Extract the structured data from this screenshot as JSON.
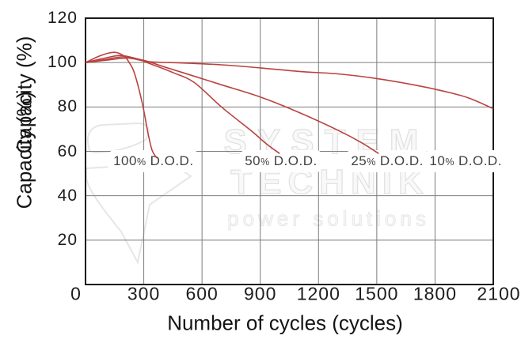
{
  "chart_data": {
    "type": "line",
    "title": "",
    "xlabel": "Number of cycles (cycles)",
    "ylabel": "Capacity (%)",
    "ylabel_note": "axis title appears twice, overlapping (rendering artifact in source)",
    "xlim": [
      0,
      2100
    ],
    "ylim": [
      0,
      120
    ],
    "x_ticks": [
      "0",
      "300",
      "600",
      "900",
      "1200",
      "1500",
      "1800",
      "2100"
    ],
    "y_ticks": [
      "20",
      "40",
      "60",
      "80",
      "100",
      "120"
    ],
    "grid": "on",
    "legend_position": "none",
    "line_color": "#b9423f",
    "series": [
      {
        "name": "100% D.O.D.",
        "points": [
          [
            0,
            100
          ],
          [
            60,
            102.5
          ],
          [
            120,
            104.3
          ],
          [
            160,
            104.5
          ],
          [
            200,
            102.8
          ],
          [
            225,
            100
          ],
          [
            253,
            95
          ],
          [
            294,
            81
          ],
          [
            322,
            68
          ],
          [
            343,
            60.5
          ],
          [
            367,
            57
          ]
        ]
      },
      {
        "name": "50% D.O.D.",
        "points": [
          [
            0,
            100
          ],
          [
            100,
            102
          ],
          [
            180,
            103.2
          ],
          [
            260,
            101.8
          ],
          [
            326,
            99.7
          ],
          [
            450,
            95.5
          ],
          [
            560,
            91
          ],
          [
            700,
            80
          ],
          [
            850,
            69.5
          ],
          [
            930,
            63.5
          ],
          [
            1000,
            59
          ]
        ]
      },
      {
        "name": "25% D.O.D.",
        "points": [
          [
            0,
            100
          ],
          [
            110,
            101.5
          ],
          [
            200,
            102.6
          ],
          [
            300,
            101
          ],
          [
            400,
            98.2
          ],
          [
            500,
            95.5
          ],
          [
            700,
            90
          ],
          [
            900,
            84.5
          ],
          [
            1100,
            77.5
          ],
          [
            1300,
            69.5
          ],
          [
            1420,
            64
          ],
          [
            1510,
            59
          ]
        ]
      },
      {
        "name": "10% D.O.D.",
        "points": [
          [
            0,
            100
          ],
          [
            120,
            101.2
          ],
          [
            220,
            102
          ],
          [
            326,
            100.4
          ],
          [
            500,
            99.8
          ],
          [
            700,
            99
          ],
          [
            900,
            97.6
          ],
          [
            1100,
            96
          ],
          [
            1300,
            94.9
          ],
          [
            1500,
            92.8
          ],
          [
            1700,
            89.8
          ],
          [
            1850,
            87
          ],
          [
            1975,
            84
          ],
          [
            2100,
            79.2
          ]
        ]
      }
    ],
    "annotations": [
      {
        "num": "100",
        "pct": "%",
        "suffix": "D.O.D.",
        "x": 350,
        "y": 55.5
      },
      {
        "num": "50",
        "pct": "%",
        "suffix": "D.O.D.",
        "x": 1007,
        "y": 55.5
      },
      {
        "num": "25",
        "pct": "%",
        "suffix": "D.O.D.",
        "x": 1554,
        "y": 55.5
      },
      {
        "num": "10",
        "pct": "%",
        "suffix": "D.O.D.",
        "x": 1958,
        "y": 55.5
      }
    ]
  },
  "watermark": {
    "line1": "SYSTEM",
    "line2": "TECHNIK",
    "line3": "power solutions"
  },
  "colors": {
    "curve": "#b9423f",
    "grid": "#7d7d7d",
    "border": "#1a1a1a",
    "tick_text": "#1c1c1c",
    "dod_text": "#414141",
    "watermark": "#e2e2e2"
  }
}
